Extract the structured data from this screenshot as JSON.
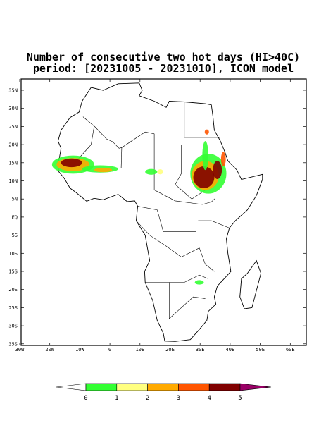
{
  "title": "Number of consecutive two hot days (HI>40C)",
  "subtitle": "period: [20231005 - 20231010], ICON model",
  "lat_labels": [
    "35N",
    "30N",
    "25N",
    "20N",
    "15N",
    "10N",
    "5N",
    "EQ",
    "5S",
    "10S",
    "15S",
    "20S",
    "25S",
    "30S",
    "35S"
  ],
  "lon_labels": [
    "30W",
    "20W",
    "10W",
    "0",
    "10E",
    "20E",
    "30E",
    "40E",
    "50E",
    "60E"
  ],
  "colorbar": {
    "ticks": [
      0,
      1,
      2,
      3,
      4,
      5
    ],
    "colors": [
      "#ffffff",
      "#33ff33",
      "#ffff80",
      "#ffaa00",
      "#ff5500",
      "#800000",
      "#990066"
    ]
  }
}
